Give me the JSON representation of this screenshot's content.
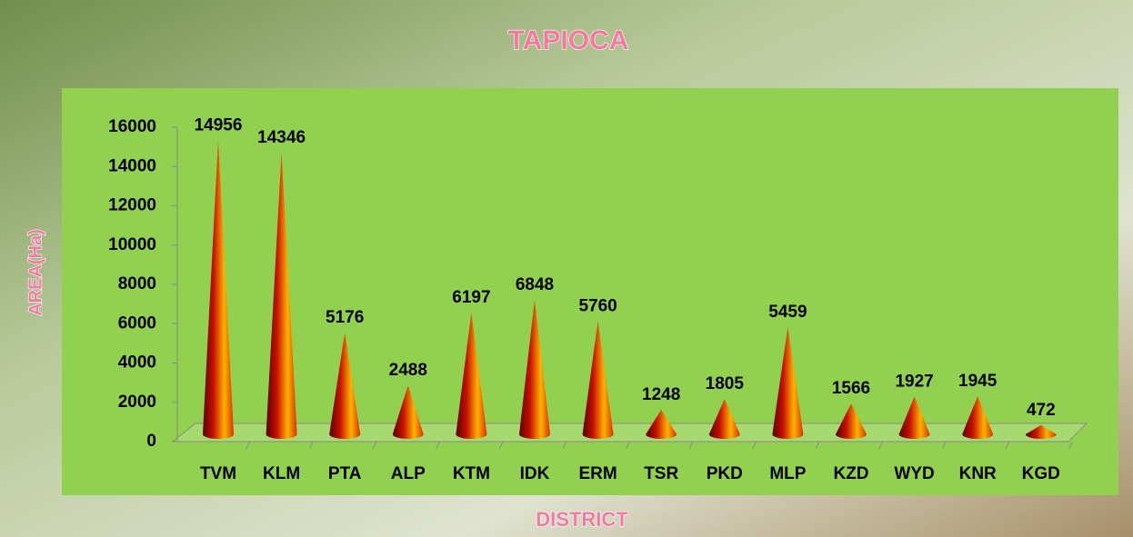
{
  "chart_data": {
    "type": "cone",
    "title": "TAPIOCA",
    "x_label": "DISTRICT",
    "y_label": "AREA(Ha)",
    "categories": [
      "TVM",
      "KLM",
      "PTA",
      "ALP",
      "KTM",
      "IDK",
      "ERM",
      "TSR",
      "PKD",
      "MLP",
      "KZD",
      "WYD",
      "KNR",
      "KGD"
    ],
    "values": [
      14956,
      14346,
      5176,
      2488,
      6197,
      6848,
      5760,
      1248,
      1805,
      5459,
      1566,
      1927,
      1945,
      472
    ],
    "ylim": [
      0,
      16000
    ],
    "yticks": [
      0,
      2000,
      4000,
      6000,
      8000,
      10000,
      12000,
      14000,
      16000
    ]
  }
}
